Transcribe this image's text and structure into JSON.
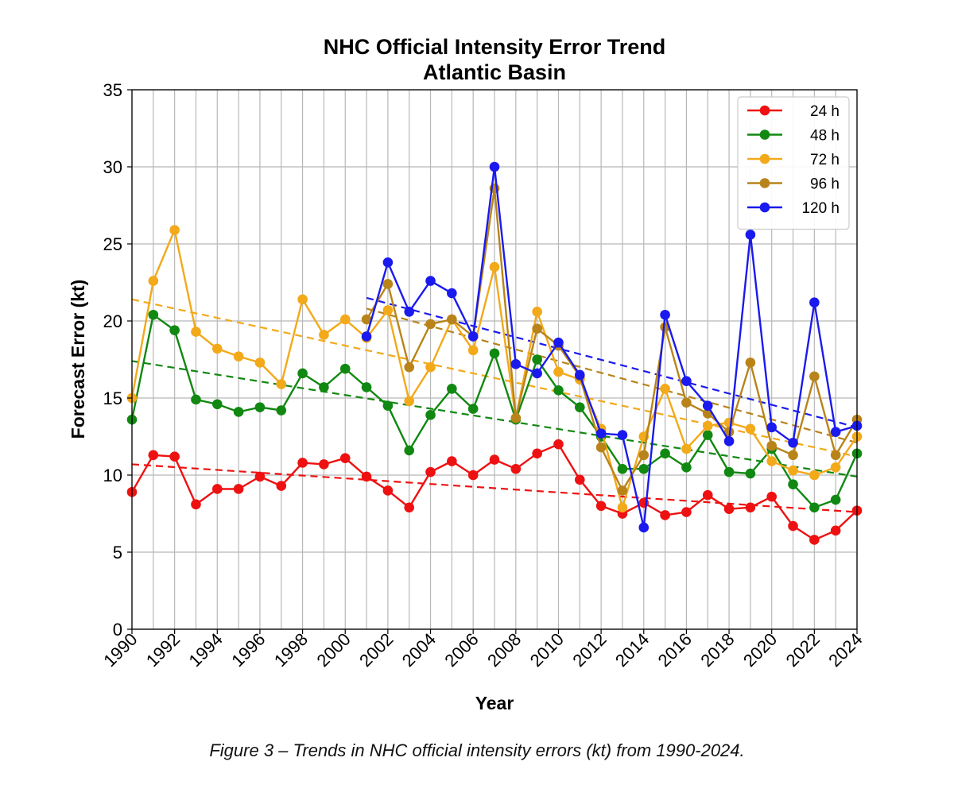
{
  "caption": "Figure 3 – Trends in NHC official intensity errors (kt) from 1990-2024.",
  "chart_data": {
    "type": "line",
    "title": "NHC Official Intensity Error Trend",
    "subtitle": "Atlantic Basin",
    "xlabel": "Year",
    "ylabel": "Forecast Error (kt)",
    "xlim": [
      1990,
      2024
    ],
    "ylim": [
      0,
      35
    ],
    "xticks": [
      "1990",
      "1992",
      "1994",
      "1996",
      "1998",
      "2000",
      "2002",
      "2004",
      "2006",
      "2008",
      "2010",
      "2012",
      "2014",
      "2016",
      "2018",
      "2020",
      "2022",
      "2024"
    ],
    "yticks": [
      "0",
      "5",
      "10",
      "15",
      "20",
      "25",
      "30",
      "35"
    ],
    "grid": true,
    "legend_position": "top-right",
    "trendlines": "dashed linear fit per series",
    "series": [
      {
        "name": "24 h",
        "color": "#ee1111",
        "x": [
          1990,
          1991,
          1992,
          1993,
          1994,
          1995,
          1996,
          1997,
          1998,
          1999,
          2000,
          2001,
          2002,
          2003,
          2004,
          2005,
          2006,
          2007,
          2008,
          2009,
          2010,
          2011,
          2012,
          2013,
          2014,
          2015,
          2016,
          2017,
          2018,
          2019,
          2020,
          2021,
          2022,
          2023,
          2024
        ],
        "values": [
          8.9,
          11.3,
          11.2,
          8.1,
          9.1,
          9.1,
          9.9,
          9.3,
          10.8,
          10.7,
          11.1,
          9.9,
          9.0,
          7.9,
          10.2,
          10.9,
          10.0,
          11.0,
          10.4,
          11.4,
          12.0,
          9.7,
          8.0,
          7.5,
          8.2,
          7.4,
          7.6,
          8.7,
          7.8,
          7.9,
          8.6,
          6.7,
          5.8,
          6.4,
          7.7
        ],
        "trend": [
          10.7,
          7.6
        ]
      },
      {
        "name": "48 h",
        "color": "#118811",
        "x": [
          1990,
          1991,
          1992,
          1993,
          1994,
          1995,
          1996,
          1997,
          1998,
          1999,
          2000,
          2001,
          2002,
          2003,
          2004,
          2005,
          2006,
          2007,
          2008,
          2009,
          2010,
          2011,
          2012,
          2013,
          2014,
          2015,
          2016,
          2017,
          2018,
          2019,
          2020,
          2021,
          2022,
          2023,
          2024
        ],
        "values": [
          13.6,
          20.4,
          19.4,
          14.9,
          14.6,
          14.1,
          14.4,
          14.2,
          16.6,
          15.7,
          16.9,
          15.7,
          14.5,
          11.6,
          13.9,
          15.6,
          14.3,
          17.9,
          13.6,
          17.5,
          15.5,
          14.4,
          12.5,
          10.4,
          10.4,
          11.4,
          10.5,
          12.6,
          10.2,
          10.1,
          11.7,
          9.4,
          7.9,
          8.4,
          11.4
        ],
        "trend": [
          17.4,
          9.9
        ]
      },
      {
        "name": "72 h",
        "color": "#f2a91a",
        "x": [
          1990,
          1991,
          1992,
          1993,
          1994,
          1995,
          1996,
          1997,
          1998,
          1999,
          2000,
          2001,
          2002,
          2003,
          2004,
          2005,
          2006,
          2007,
          2008,
          2009,
          2010,
          2011,
          2012,
          2013,
          2014,
          2015,
          2016,
          2017,
          2018,
          2019,
          2020,
          2021,
          2022,
          2023,
          2024
        ],
        "values": [
          15.0,
          22.6,
          25.9,
          19.3,
          18.2,
          17.7,
          17.3,
          15.9,
          21.4,
          19.1,
          20.1,
          18.9,
          20.7,
          14.8,
          17.0,
          20.1,
          18.1,
          23.5,
          13.7,
          20.6,
          16.7,
          16.2,
          13.0,
          7.9,
          12.5,
          15.6,
          11.7,
          13.2,
          13.4,
          13.0,
          10.9,
          10.3,
          10.0,
          10.5,
          12.5
        ],
        "trend": [
          21.4,
          11.2
        ]
      },
      {
        "name": "96 h",
        "color": "#b8841a",
        "x": [
          2001,
          2002,
          2003,
          2004,
          2005,
          2006,
          2007,
          2008,
          2009,
          2010,
          2011,
          2012,
          2013,
          2014,
          2015,
          2016,
          2017,
          2018,
          2019,
          2020,
          2021,
          2022,
          2023,
          2024
        ],
        "values": [
          20.1,
          22.4,
          17.0,
          19.8,
          20.1,
          19.0,
          28.6,
          13.7,
          19.5,
          18.4,
          16.4,
          11.8,
          9.0,
          11.3,
          19.6,
          14.7,
          14.0,
          12.8,
          17.3,
          11.9,
          11.3,
          16.4,
          11.3,
          13.6
        ],
        "trend": [
          20.8,
          12.1
        ]
      },
      {
        "name": "120 h",
        "color": "#1a1aee",
        "x": [
          2001,
          2002,
          2003,
          2004,
          2005,
          2006,
          2007,
          2008,
          2009,
          2010,
          2011,
          2012,
          2013,
          2014,
          2015,
          2016,
          2017,
          2018,
          2019,
          2020,
          2021,
          2022,
          2023,
          2024
        ],
        "values": [
          19.0,
          23.8,
          20.6,
          22.6,
          21.8,
          19.0,
          30.0,
          17.2,
          16.6,
          18.6,
          16.5,
          12.7,
          12.6,
          6.6,
          20.4,
          16.1,
          14.5,
          12.2,
          25.6,
          13.1,
          12.1,
          21.2,
          12.8,
          13.2
        ],
        "trend": [
          21.5,
          13.1
        ]
      }
    ]
  }
}
